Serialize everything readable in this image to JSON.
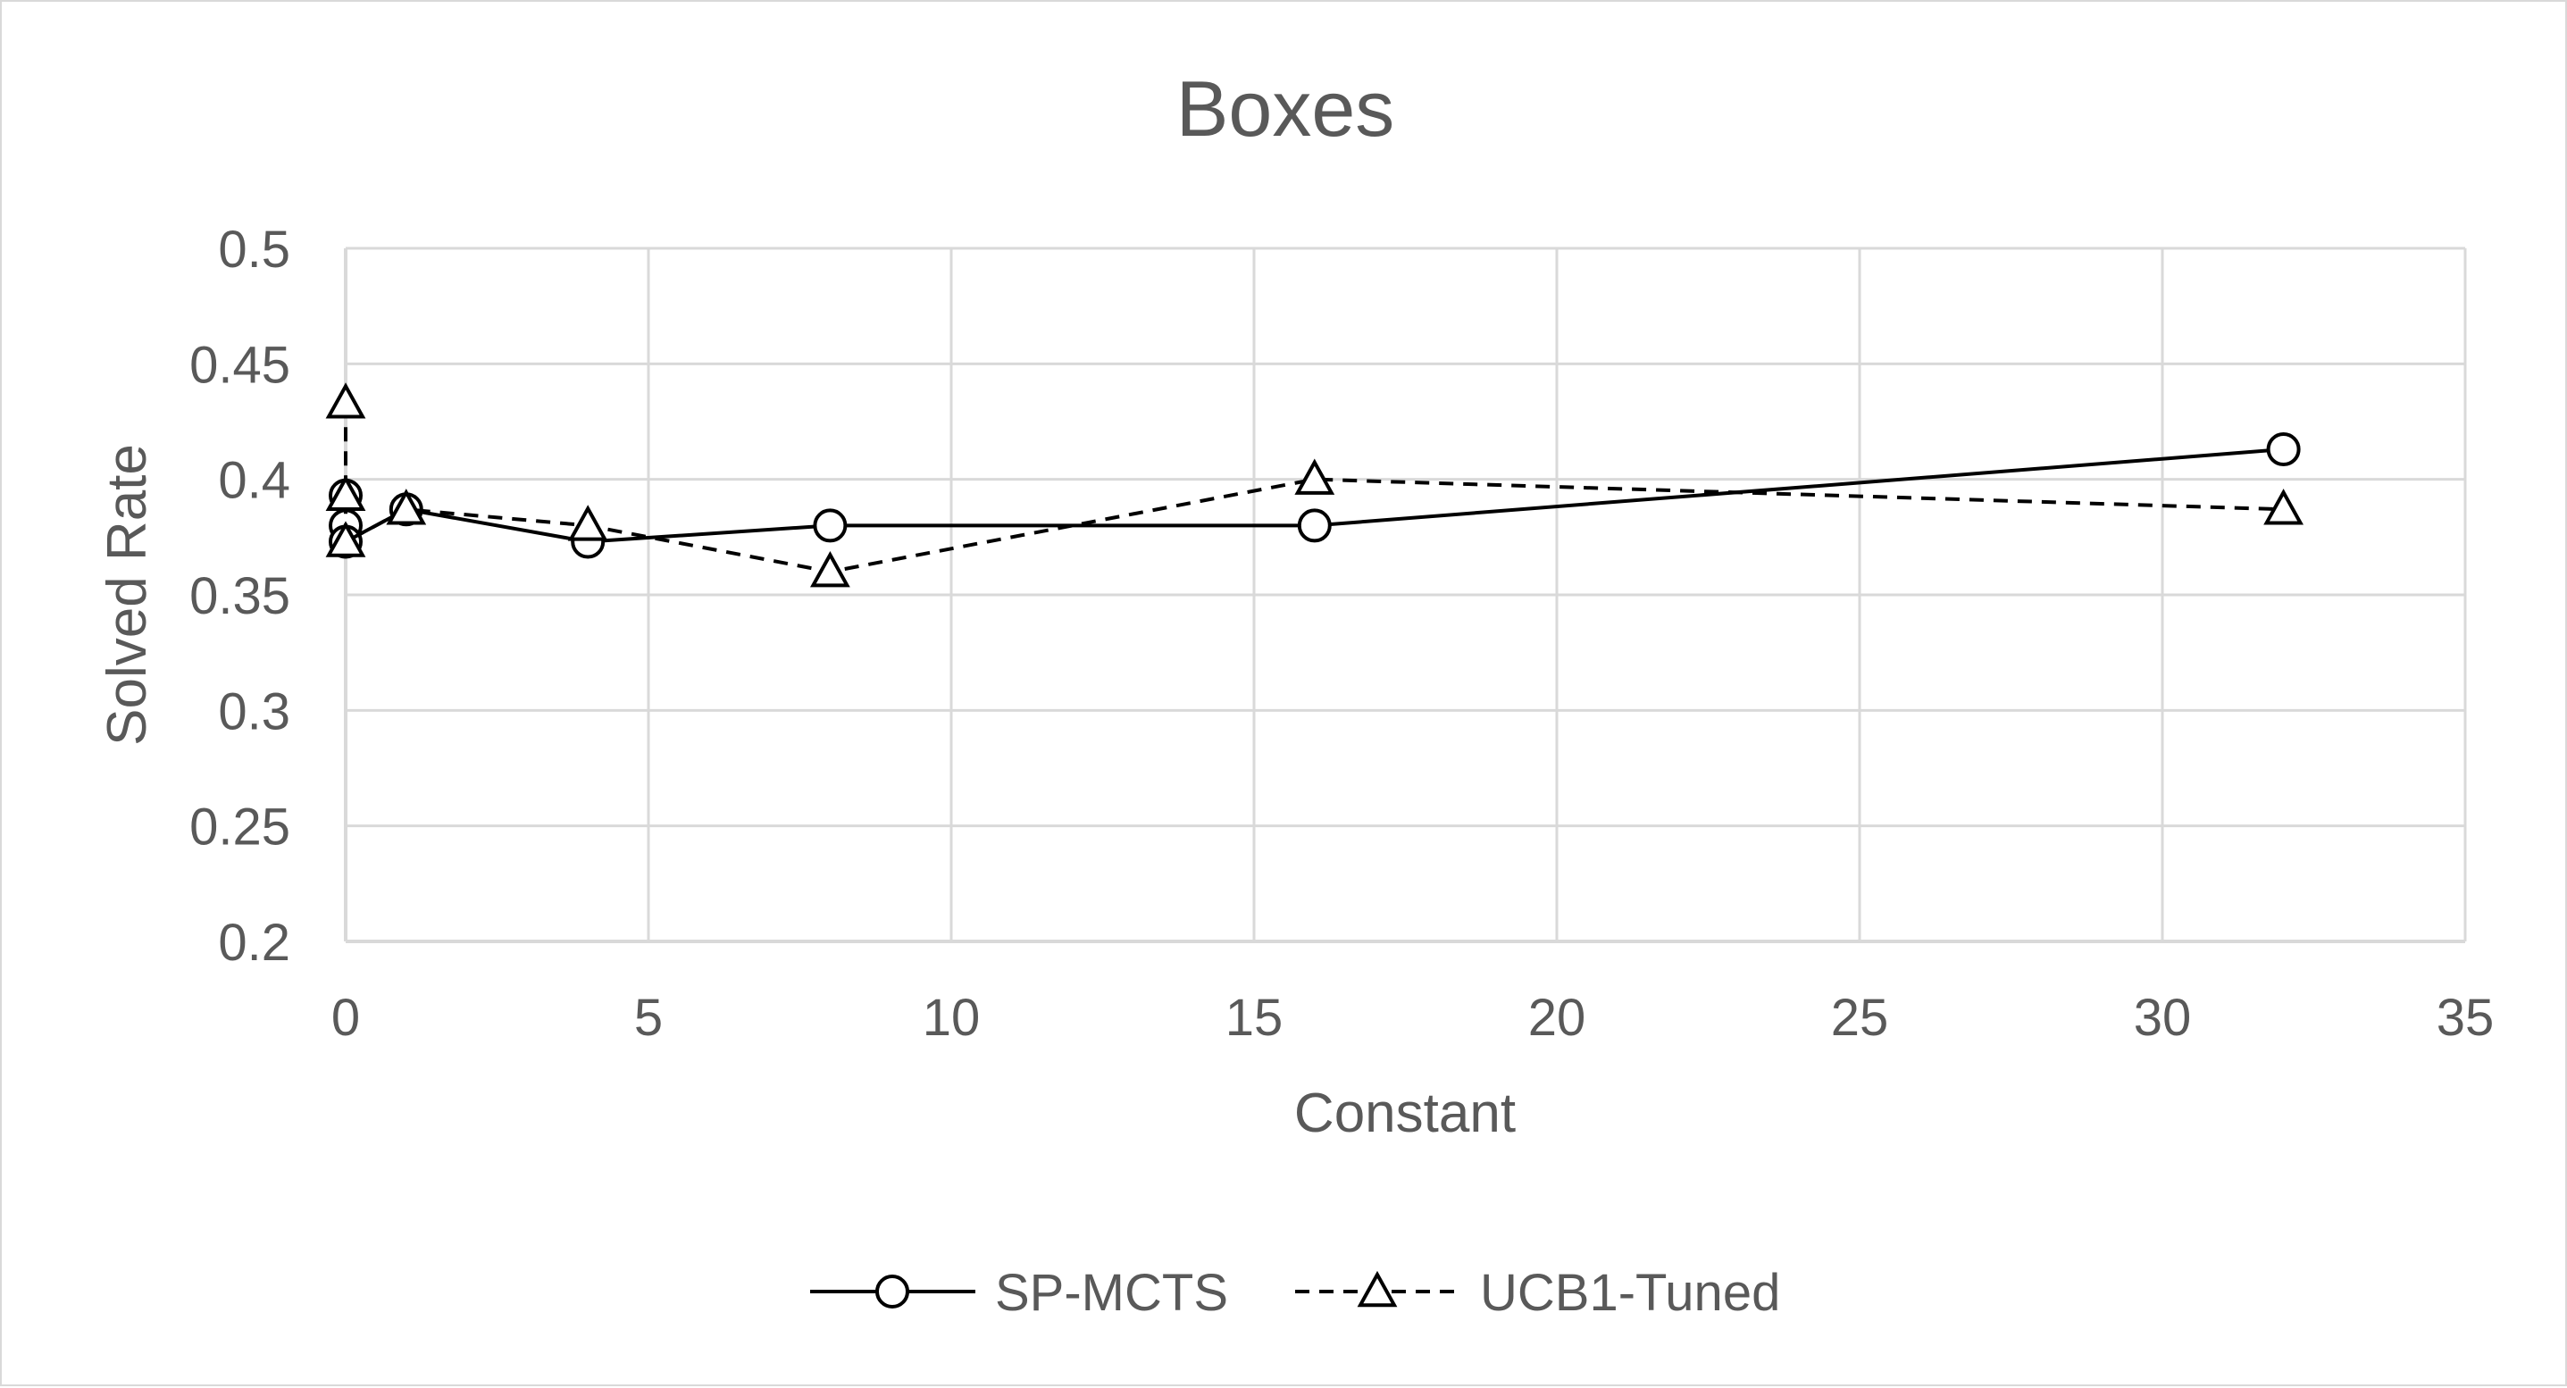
{
  "chart_data": {
    "type": "scatter",
    "title": "Boxes",
    "xlabel": "Constant",
    "ylabel": "Solved Rate",
    "xlim": [
      0,
      35
    ],
    "ylim": [
      0.2,
      0.5
    ],
    "x_ticks": [
      0,
      5,
      10,
      15,
      20,
      25,
      30,
      35
    ],
    "x_tick_labels": [
      "0",
      "5",
      "10",
      "15",
      "20",
      "25",
      "30",
      "35"
    ],
    "y_ticks": [
      0.2,
      0.25,
      0.3,
      0.35,
      0.4,
      0.45,
      0.5
    ],
    "y_tick_labels": [
      "0.2",
      "0.25",
      "0.3",
      "0.35",
      "0.4",
      "0.45",
      "0.5"
    ],
    "grid": true,
    "legend_position": "bottom",
    "series": [
      {
        "name": "SP-MCTS",
        "line_style": "solid",
        "marker": "circle",
        "color": "#000000",
        "x": [
          0,
          0,
          0,
          1,
          4,
          8,
          16,
          32
        ],
        "y": [
          0.393,
          0.38,
          0.373,
          0.387,
          0.373,
          0.38,
          0.38,
          0.413
        ]
      },
      {
        "name": "UCB1-Tuned",
        "line_style": "dashed",
        "marker": "triangle",
        "color": "#000000",
        "x": [
          0,
          0,
          0,
          1,
          4,
          8,
          16,
          32
        ],
        "y": [
          0.433,
          0.393,
          0.373,
          0.387,
          0.38,
          0.36,
          0.4,
          0.387
        ]
      }
    ]
  },
  "colors": {
    "gridline": "#d9d9d9",
    "text": "#595959",
    "series": "#000000",
    "background": "#ffffff"
  }
}
